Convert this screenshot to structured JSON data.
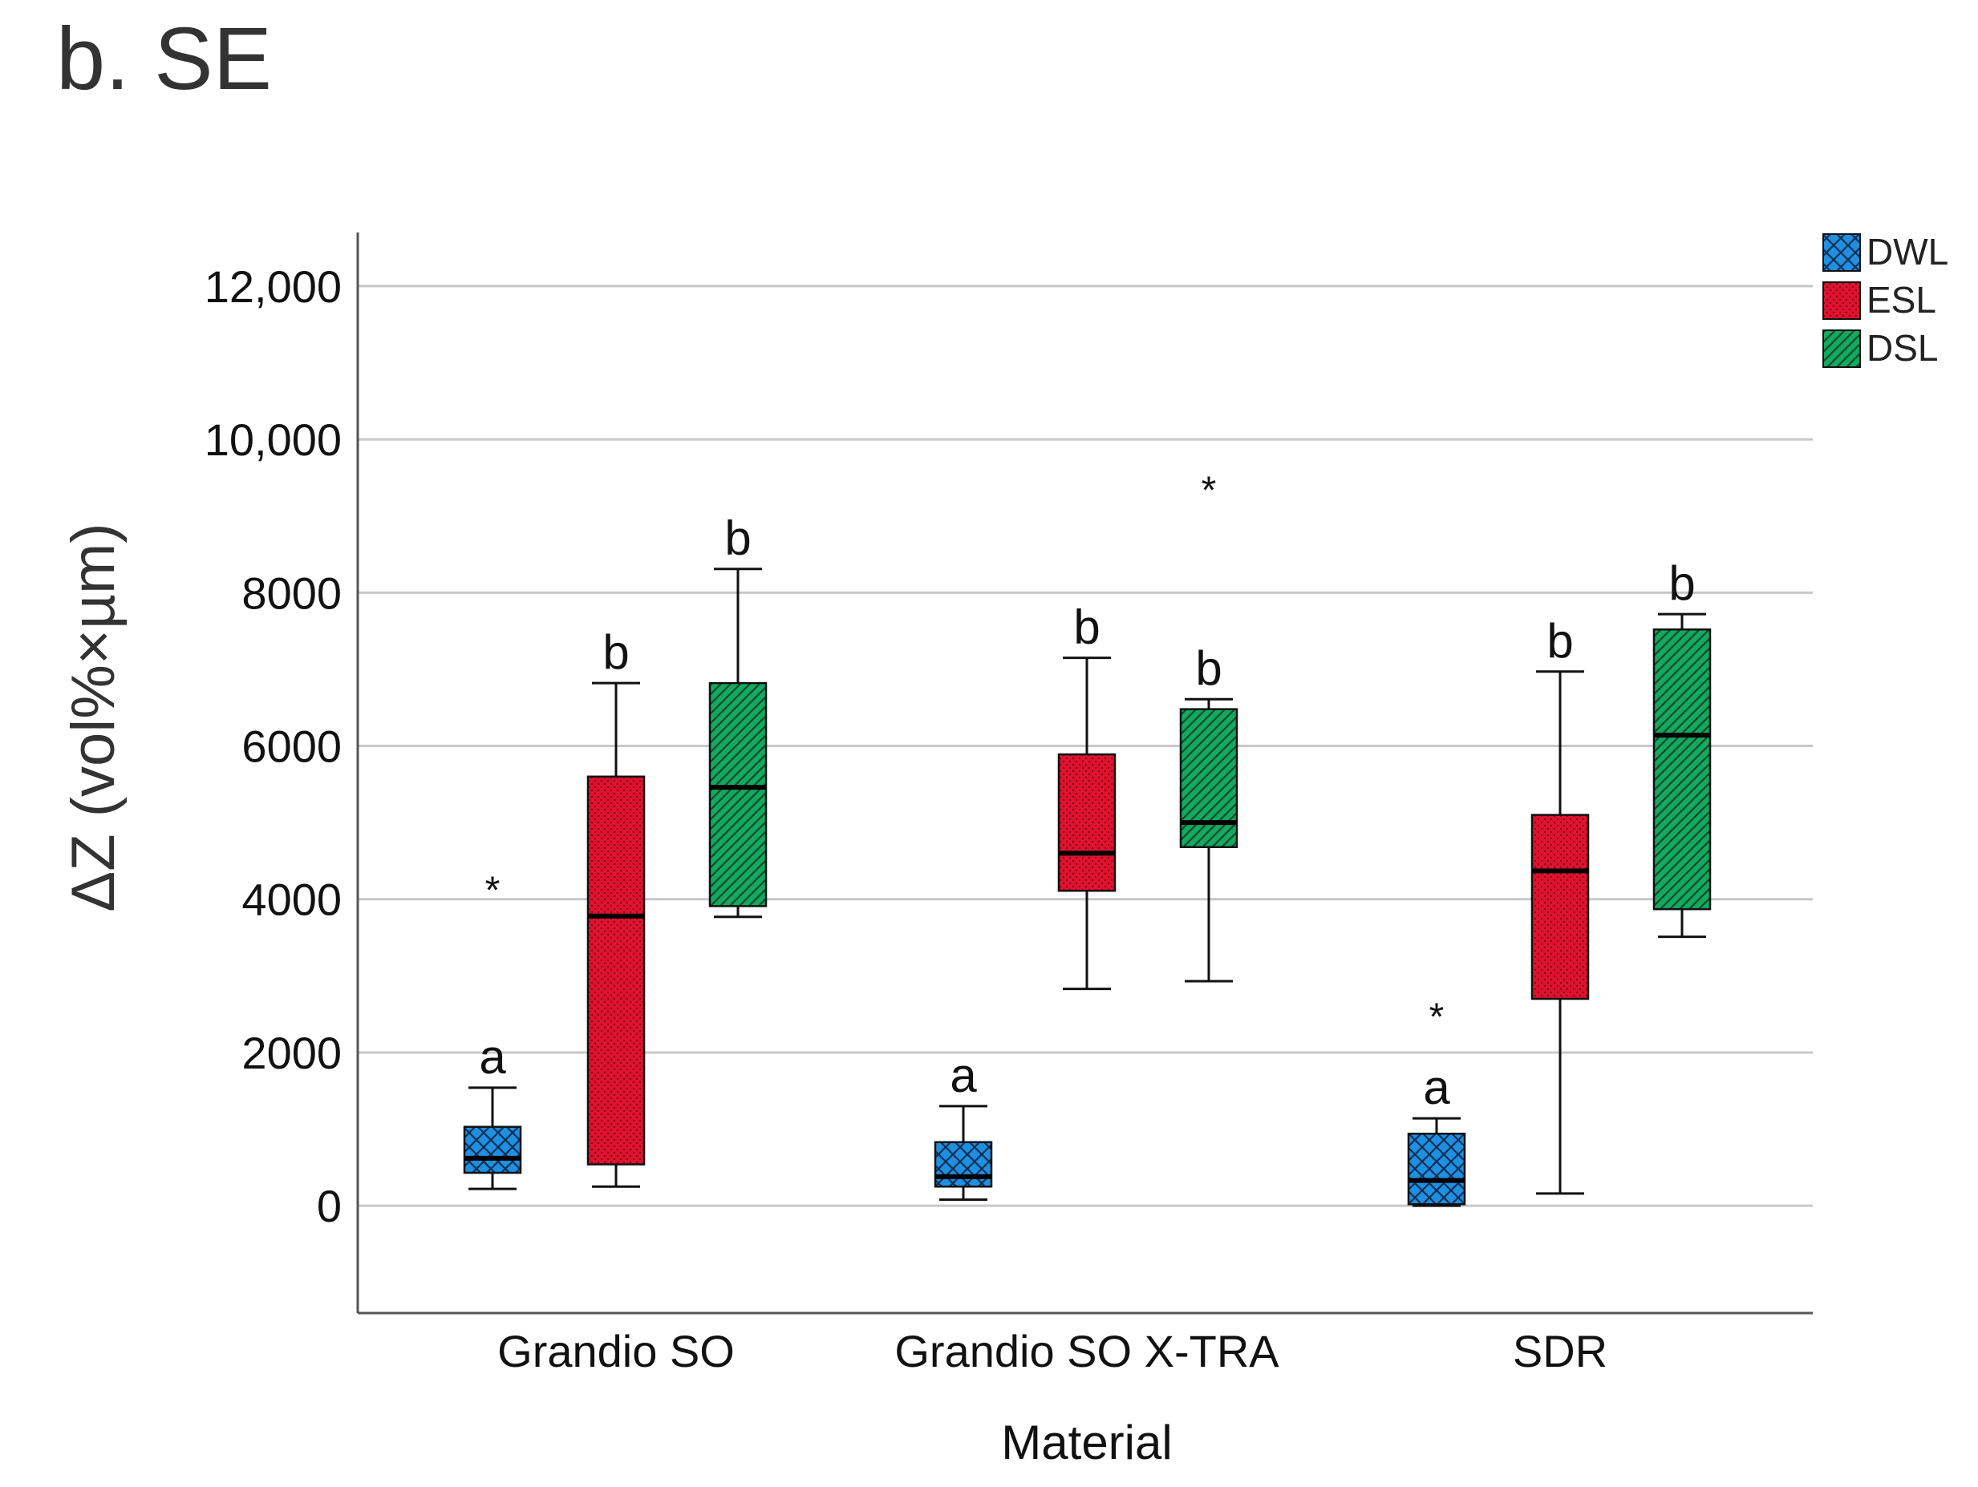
{
  "panel_title": "b. SE",
  "chart_data": {
    "type": "box",
    "title": "b. SE",
    "xlabel": "Material",
    "ylabel": "ΔZ (vol%×µm)",
    "ylim": [
      -1400,
      12700
    ],
    "yticks": [
      0,
      2000,
      4000,
      6000,
      8000,
      10000,
      12000
    ],
    "ytick_labels": [
      "0",
      "2000",
      "4000",
      "6000",
      "8000",
      "10,000",
      "12,000"
    ],
    "grid": true,
    "legend_position": "top-right",
    "categories": [
      "Grandio SO",
      "Grandio SO X-TRA",
      "SDR"
    ],
    "series": [
      {
        "name": "DWL",
        "color": "#1f8fe0",
        "pattern": "crosshatch",
        "boxes": [
          {
            "category": "Grandio SO",
            "min": 220,
            "q1": 430,
            "median": 620,
            "q3": 1030,
            "max": 1540,
            "outliers": [
              4200
            ],
            "letter": "a"
          },
          {
            "category": "Grandio SO X-TRA",
            "min": 80,
            "q1": 250,
            "median": 380,
            "q3": 830,
            "max": 1300,
            "outliers": [],
            "letter": "a"
          },
          {
            "category": "SDR",
            "min": 0,
            "q1": 20,
            "median": 330,
            "q3": 940,
            "max": 1140,
            "outliers": [
              2550
            ],
            "letter": "a"
          }
        ]
      },
      {
        "name": "ESL",
        "color": "#e0122f",
        "pattern": "dots",
        "boxes": [
          {
            "category": "Grandio SO",
            "min": 250,
            "q1": 540,
            "median": 3780,
            "q3": 5600,
            "max": 6820,
            "outliers": [],
            "letter": "b"
          },
          {
            "category": "Grandio SO X-TRA",
            "min": 2830,
            "q1": 4110,
            "median": 4600,
            "q3": 5890,
            "max": 7150,
            "outliers": [],
            "letter": "b"
          },
          {
            "category": "SDR",
            "min": 160,
            "q1": 2700,
            "median": 4370,
            "q3": 5100,
            "max": 6970,
            "outliers": [],
            "letter": "b"
          }
        ]
      },
      {
        "name": "DSL",
        "color": "#14a860",
        "pattern": "diagonal",
        "boxes": [
          {
            "category": "Grandio SO",
            "min": 3770,
            "q1": 3910,
            "median": 5460,
            "q3": 6820,
            "max": 8310,
            "outliers": [],
            "letter": "b"
          },
          {
            "category": "Grandio SO X-TRA",
            "min": 2930,
            "q1": 4680,
            "median": 5000,
            "q3": 6480,
            "max": 6610,
            "outliers": [
              9420
            ],
            "letter": "b"
          },
          {
            "category": "SDR",
            "min": 3510,
            "q1": 3870,
            "median": 6140,
            "q3": 7520,
            "max": 7720,
            "outliers": [],
            "letter": "b"
          }
        ]
      }
    ]
  }
}
